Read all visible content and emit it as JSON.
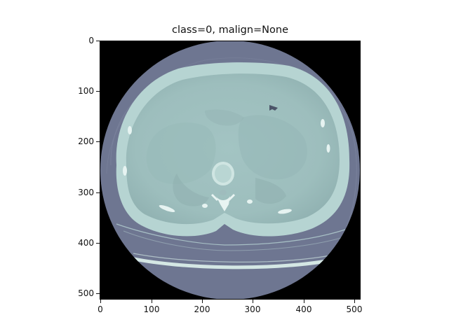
{
  "title": "class=0, malign=None",
  "image": {
    "description_colors": {
      "background_outside_fov": "#000000",
      "fov_disc": "#6e7691",
      "body_soft_tissue": "#9fc0c0",
      "body_edge": "#b5d4d2",
      "bone": "#e8f4f2",
      "table": "#cfe3e0",
      "couch_line": "#9db2ba"
    }
  },
  "axes": {
    "xlim": [
      0,
      511
    ],
    "ylim": [
      511,
      0
    ],
    "xticks": [
      "0",
      "100",
      "200",
      "300",
      "400",
      "500"
    ],
    "yticks": [
      "0",
      "100",
      "200",
      "300",
      "400",
      "500"
    ]
  }
}
